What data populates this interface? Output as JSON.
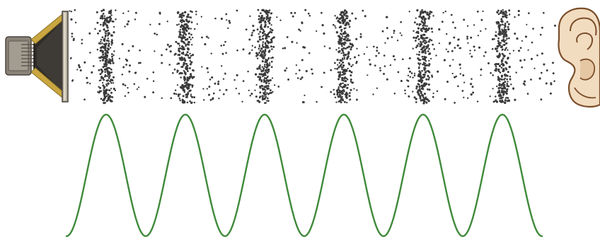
{
  "diagram": {
    "topic": "sound-wave-propagation",
    "elements": [
      "speaker-icon",
      "air-particles",
      "ear-icon",
      "pressure-wave"
    ],
    "compression_count": 6,
    "wave_cycles_shown": 6,
    "colors": {
      "background": "#ffffff",
      "particle": "#3a3a3a",
      "wave": "#3f8a3a",
      "speaker_metal": "#8a8378",
      "speaker_frame": "#c9a640",
      "speaker_cone": "#2e2b28",
      "ear_skin": "#f2dcc0",
      "ear_outline": "#7a4e2a"
    }
  }
}
